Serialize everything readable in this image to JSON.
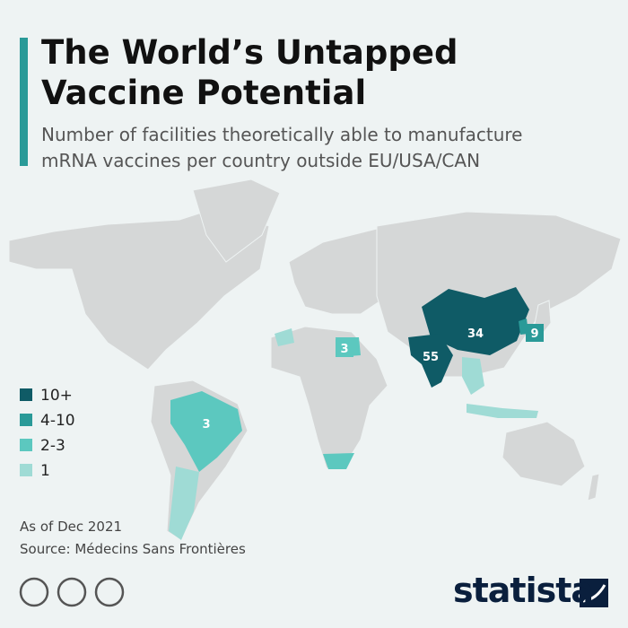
{
  "header": {
    "title": "The World’s Untapped Vaccine Potential",
    "subtitle": "Number of facilities theoretically able to manufacture mRNA vaccines per country outside EU/USA/CAN"
  },
  "legend": [
    {
      "label": "10+",
      "color": "#0f5b66"
    },
    {
      "label": "4-10",
      "color": "#2a9a98"
    },
    {
      "label": "2-3",
      "color": "#5cc8bf"
    },
    {
      "label": "1",
      "color": "#9fdbd5"
    }
  ],
  "map_labels": [
    {
      "value": 34,
      "color": "#0f5b66"
    },
    {
      "value": 55,
      "color": "#0f5b66"
    },
    {
      "value": 9,
      "color": "#2a9a98"
    },
    {
      "value": 3,
      "color": "#5cc8bf"
    },
    {
      "value": 3,
      "color": "#5cc8bf"
    }
  ],
  "footer": {
    "note": "As of Dec 2021",
    "source": "Source: Médecins Sans Frontières",
    "brand": "statista"
  }
}
